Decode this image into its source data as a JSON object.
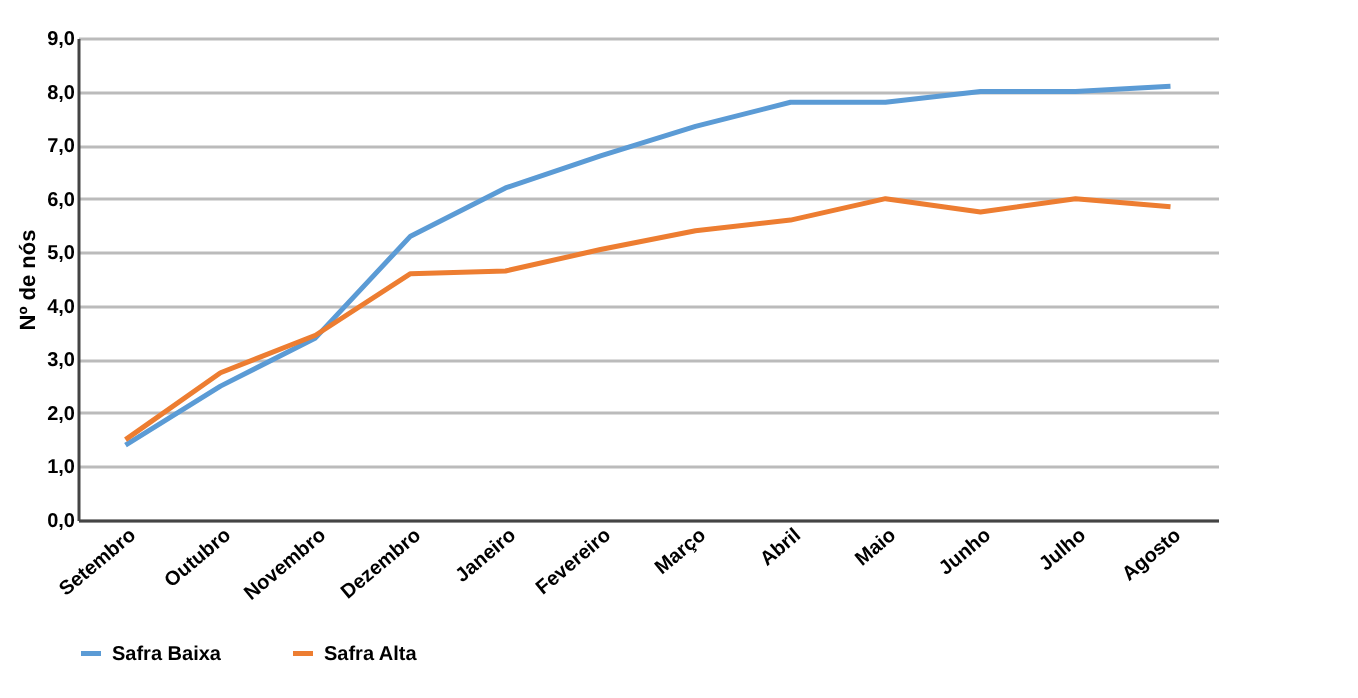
{
  "chart_data": {
    "type": "line",
    "ylabel": "Nº de nós",
    "categories": [
      "Setembro",
      "Outubro",
      "Novembro",
      "Dezembro",
      "Janeiro",
      "Fevereiro",
      "Março",
      "Abril",
      "Maio",
      "Junho",
      "Julho",
      "Agosto"
    ],
    "series": [
      {
        "name": "Safra Baixa",
        "color": "#5b9bd5",
        "values": [
          1.4,
          2.5,
          3.4,
          5.3,
          6.2,
          6.8,
          7.35,
          7.8,
          7.8,
          8.0,
          8.0,
          8.1
        ]
      },
      {
        "name": "Safra Alta",
        "color": "#ed7d31",
        "values": [
          1.5,
          2.75,
          3.45,
          4.6,
          4.65,
          5.05,
          5.4,
          5.6,
          6.0,
          5.75,
          6.0,
          5.85
        ]
      }
    ],
    "ylim": [
      0,
      9
    ],
    "yticks": [
      {
        "value": 0,
        "label": "0,0"
      },
      {
        "value": 1,
        "label": "1,0"
      },
      {
        "value": 2,
        "label": "2,0"
      },
      {
        "value": 3,
        "label": "3,0"
      },
      {
        "value": 4,
        "label": "4,0"
      },
      {
        "value": 5,
        "label": "5,0"
      },
      {
        "value": 6,
        "label": "6,0"
      },
      {
        "value": 7,
        "label": "7,0"
      },
      {
        "value": 8,
        "label": "8,0"
      },
      {
        "value": 9,
        "label": "9,0"
      }
    ],
    "grid": "y",
    "legend": "bottom",
    "marker": "none",
    "line_style": "solid"
  }
}
